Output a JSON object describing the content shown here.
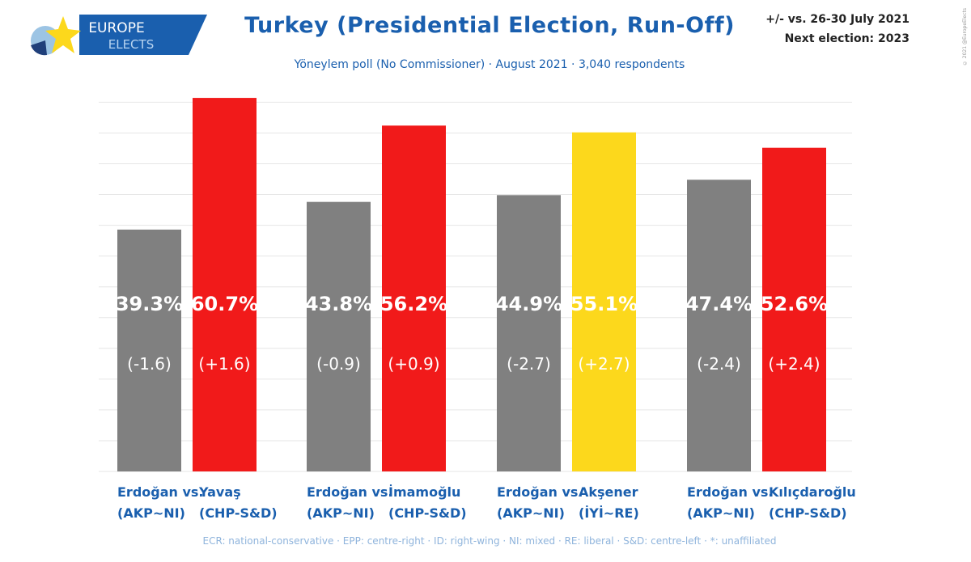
{
  "header": {
    "title": "Turkey (Presidential Election, Run-Off)",
    "subtitle": "Yöneylem poll (No Commissioner) · August 2021 · 3,040 respondents",
    "note_line1": "+/- vs. 26-30 July 2021",
    "note_line2": "Next election: 2023",
    "copyright": "© 2021 @EuropeElects",
    "logo": {
      "line1": "EUROPE",
      "line2": "ELECTS"
    }
  },
  "footer": "ECR: national-conservative · EPP: centre-right · ID: right-wing · NI: mixed · RE: liberal · S&D: centre-left · *: unaffiliated",
  "chart_data": {
    "type": "bar",
    "title": "Turkey (Presidential Election, Run-Off)",
    "ylim": [
      0,
      60
    ],
    "grid": true,
    "groups": [
      {
        "a": {
          "name": "Erdoğan",
          "party": "(AKP~NI)",
          "value": 39.3,
          "label": "39.3%",
          "change": "(-1.6)",
          "color": "#808080"
        },
        "b": {
          "name": "Yavaş",
          "party": "(CHP-S&D)",
          "value": 60.7,
          "label": "60.7%",
          "change": "(+1.6)",
          "color": "#f11a1a"
        }
      },
      {
        "a": {
          "name": "Erdoğan",
          "party": "(AKP~NI)",
          "value": 43.8,
          "label": "43.8%",
          "change": "(-0.9)",
          "color": "#808080"
        },
        "b": {
          "name": "İmamoğlu",
          "party": "(CHP-S&D)",
          "value": 56.2,
          "label": "56.2%",
          "change": "(+0.9)",
          "color": "#f11a1a"
        }
      },
      {
        "a": {
          "name": "Erdoğan",
          "party": "(AKP~NI)",
          "value": 44.9,
          "label": "44.9%",
          "change": "(-2.7)",
          "color": "#808080"
        },
        "b": {
          "name": "Akşener",
          "party": "(İYİ~RE)",
          "value": 55.1,
          "label": "55.1%",
          "change": "(+2.7)",
          "color": "#fcd81c"
        }
      },
      {
        "a": {
          "name": "Erdoğan",
          "party": "(AKP~NI)",
          "value": 47.4,
          "label": "47.4%",
          "change": "(-2.4)",
          "color": "#808080"
        },
        "b": {
          "name": "Kılıçdaroğlu",
          "party": "(CHP-S&D)",
          "value": 52.6,
          "label": "52.6%",
          "change": "(+2.4)",
          "color": "#f11a1a"
        }
      }
    ],
    "vs_label": "vs."
  }
}
